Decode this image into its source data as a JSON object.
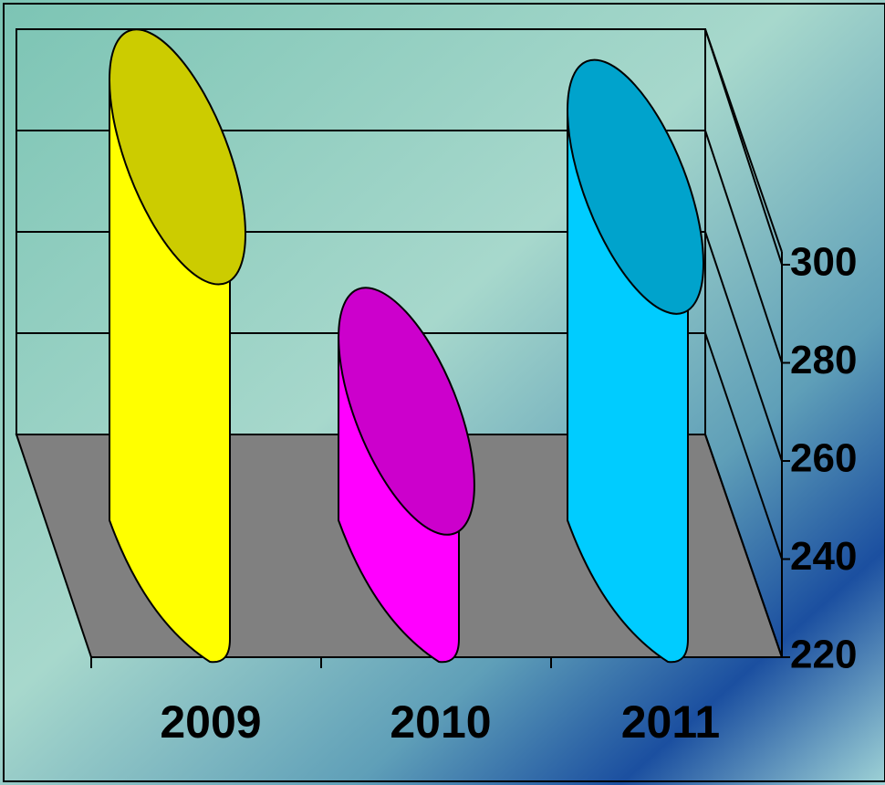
{
  "chart_data": {
    "type": "bar3d",
    "categories": [
      "2009",
      "2010",
      "2011"
    ],
    "values": [
      298,
      247,
      292
    ],
    "colors": [
      "#ffff00",
      "#ff00ff",
      "#00ccff"
    ],
    "ylim": [
      220,
      300
    ],
    "yticks": [
      220,
      240,
      260,
      280,
      300
    ],
    "grid": true
  }
}
